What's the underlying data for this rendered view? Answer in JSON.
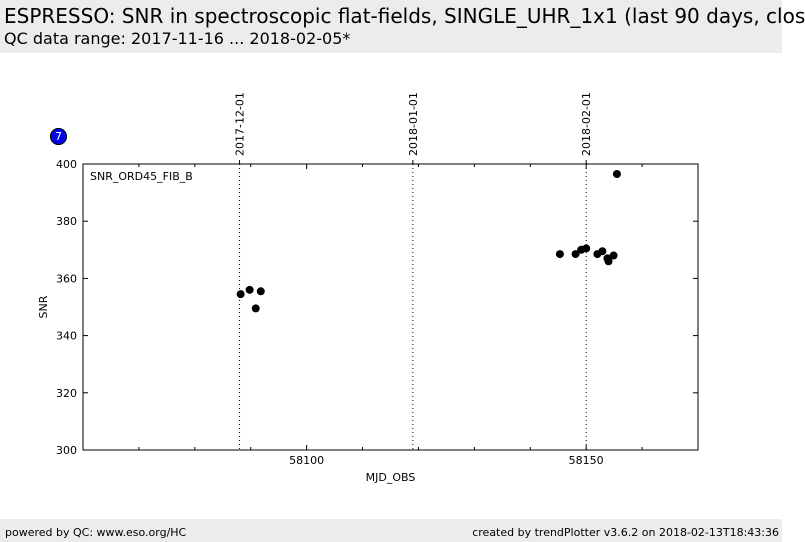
{
  "header": {
    "title": "ESPRESSO: SNR in spectroscopic flat-fields, SINGLE_UHR_1x1 (last 90 days, clos",
    "subtitle": "QC data range: 2017-11-16 ... 2018-02-05*"
  },
  "badge": {
    "label": "7"
  },
  "footer": {
    "left": "powered by QC: www.eso.org/HC",
    "right": "created by trendPlotter v3.6.2 on 2018-02-13T18:43:36"
  },
  "chart_data": {
    "type": "scatter",
    "title": "",
    "xlabel": "MJD_OBS",
    "ylabel": "SNR",
    "annotation": "SNR_ORD45_FIB_B",
    "xlim": [
      58060,
      58170
    ],
    "ylim": [
      300,
      400
    ],
    "xticks": [
      58100,
      58150
    ],
    "yticks": [
      300,
      320,
      340,
      360,
      380,
      400
    ],
    "date_lines": [
      {
        "x": 58088,
        "label": "2017-12-01"
      },
      {
        "x": 58119,
        "label": "2018-01-01"
      },
      {
        "x": 58150,
        "label": "2018-02-01"
      }
    ],
    "grid": false,
    "marker_color": "#000000",
    "series": [
      {
        "x": [
          58088.2,
          58089.8,
          58090.9,
          58091.8,
          58145.3,
          58148.1,
          58149.1,
          58150.0,
          58152.0,
          58152.9,
          58153.8,
          58154.0,
          58154.9,
          58155.5
        ],
        "y": [
          354.5,
          356.0,
          349.5,
          355.5,
          368.5,
          368.5,
          370.0,
          370.5,
          368.5,
          369.5,
          367.0,
          366.0,
          368.0,
          396.5
        ]
      }
    ]
  }
}
